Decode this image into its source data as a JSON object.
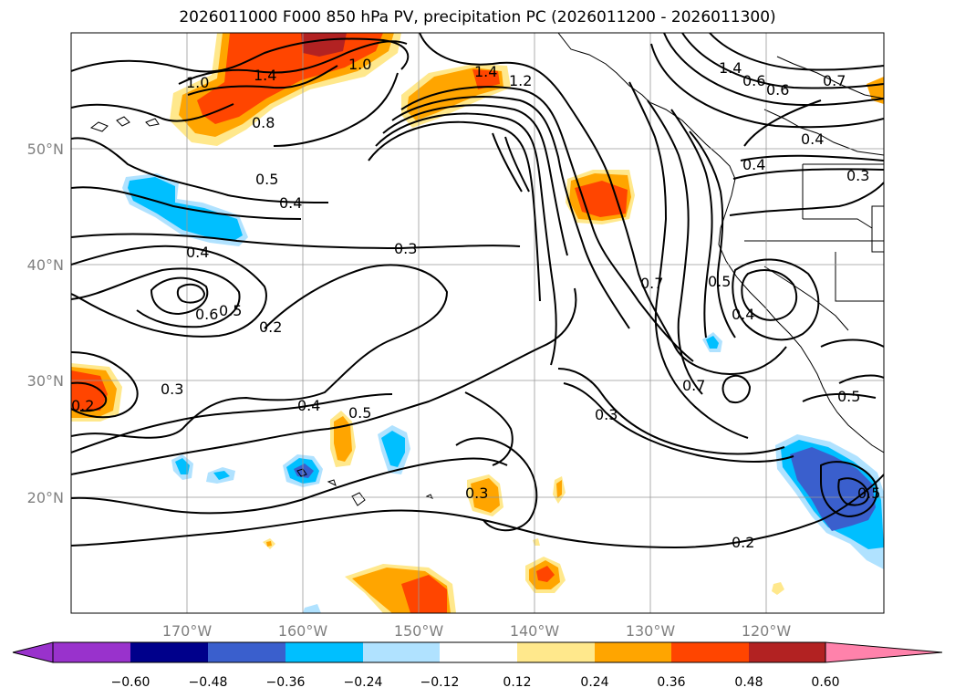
{
  "title": "2026011000 F000 850 hPa PV, precipitation PC (2026011200 - 2026011300)",
  "lat_ticks": [
    {
      "label": "50°N",
      "lat": 50
    },
    {
      "label": "40°N",
      "lat": 40
    },
    {
      "label": "30°N",
      "lat": 30
    },
    {
      "label": "20°N",
      "lat": 20
    }
  ],
  "lon_ticks": [
    {
      "label": "170°W",
      "lon": -170
    },
    {
      "label": "160°W",
      "lon": -160
    },
    {
      "label": "150°W",
      "lon": -150
    },
    {
      "label": "140°W",
      "lon": -140
    },
    {
      "label": "130°W",
      "lon": -130
    },
    {
      "label": "120°W",
      "lon": -120
    }
  ],
  "colorbar": {
    "colors": [
      "#9932cc",
      "#00008b",
      "#3a5fcd",
      "#00bfff",
      "#b0e2ff",
      "#ffffff",
      "#ffe88c",
      "#ffa500",
      "#ff4500",
      "#b22222",
      "#ff82ab"
    ],
    "labels": [
      "−0.60",
      "−0.48",
      "−0.36",
      "−0.24",
      "−0.12",
      "0.12",
      "0.24",
      "0.36",
      "0.48",
      "0.60"
    ]
  },
  "contour_labels": [
    "1.0",
    "1.4",
    "1.0",
    "0.8",
    "1.4",
    "1.2",
    "1.4",
    "0.6",
    "0.6",
    "0.7",
    "0.4",
    "0.4",
    "0.3",
    "0.5",
    "0.4",
    "0.3",
    "0.4",
    "0.6",
    "0.5",
    "0.2",
    "0.7",
    "0.5",
    "0.4",
    "0.3",
    "0.2",
    "0.4",
    "0.5",
    "0.3",
    "0.7",
    "0.3",
    "0.2",
    "0.5",
    "0.5"
  ]
}
